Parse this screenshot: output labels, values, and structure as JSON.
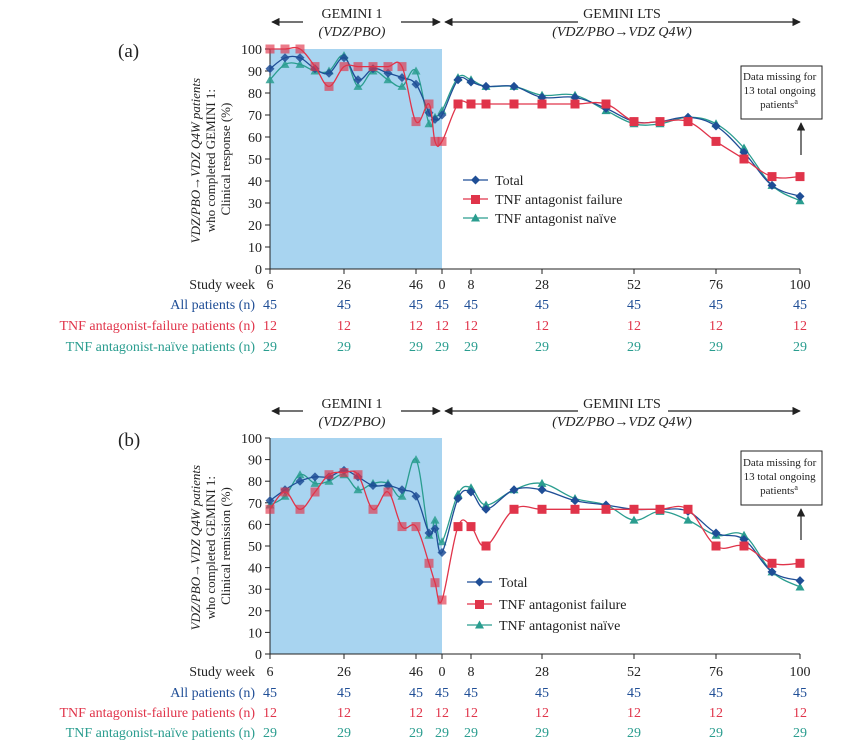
{
  "colors": {
    "total": "#1f4e96",
    "failure": "#e0344a",
    "naive": "#2a9d8f",
    "shade": "#a8d4f0",
    "axis": "#222222",
    "allPatientsText": "#1f4e96",
    "failureText": "#e0344a",
    "naiveText": "#2a9d8f"
  },
  "common": {
    "studyWeekLabel": "Study week",
    "weekTicks": [
      "6",
      "26",
      "46",
      "0",
      "8",
      "28",
      "52",
      "76",
      "100"
    ],
    "yTicks": [
      "0",
      "10",
      "20",
      "30",
      "40",
      "50",
      "60",
      "70",
      "80",
      "90",
      "100"
    ],
    "ylabelLine1": "VDZ/PBO→VDZ Q4W patients",
    "ylabelLine2": "who completed GEMINI 1:",
    "gemini1": "GEMINI 1",
    "geminiLts": "GEMINI LTS",
    "annotationLines": [
      "Data missing for",
      "13 total ongoing",
      "patients"
    ],
    "annotationSup": "a",
    "legend": [
      "Total",
      "TNF antagonist failure",
      "TNF antagonist naïve"
    ],
    "nRows": [
      {
        "label": "All patients (n)",
        "values": [
          "45",
          "45",
          "45",
          "45",
          "45",
          "45",
          "45",
          "45",
          "45"
        ]
      },
      {
        "label": "TNF antagonist-failure patients (n)",
        "values": [
          "12",
          "12",
          "12",
          "12",
          "12",
          "12",
          "12",
          "12",
          "12"
        ]
      },
      {
        "label": "TNF antagonist-naïve patients (n)",
        "values": [
          "29",
          "29",
          "29",
          "29",
          "29",
          "29",
          "29",
          "29",
          "29"
        ]
      }
    ]
  },
  "panels": [
    {
      "label": "(a)",
      "ylabelLine3": "Clinical response (%)",
      "gemini1Sub": "(VDZ/PBO)",
      "ltsSub": "(VDZ/PBO→VDZ Q4W)"
    },
    {
      "label": "(b)",
      "ylabelLine3": "Clinical remission (%)",
      "gemini1Sub": "(VDZ/PBO)",
      "ltsSub": "(VDZ/PBO→VDZ Q4W)"
    }
  ],
  "chart_data": [
    {
      "type": "line",
      "xlabel": "Study week",
      "ylabel": "VDZ/PBO→VDZ Q4W patients who completed GEMINI 1: Clinical response (%)",
      "ylim": [
        0,
        100
      ],
      "x_ticks": [
        "6",
        "26",
        "46",
        "0",
        "8",
        "28",
        "52",
        "76",
        "100"
      ],
      "periods": [
        "GEMINI 1 (VDZ/PBO)",
        "GEMINI LTS (VDZ/PBO→VDZ Q4W)"
      ],
      "legend_position": "center-right",
      "series": [
        {
          "name": "Total",
          "x": [
            "G1 wk 6",
            "G1 wk 10",
            "G1 wk 14",
            "G1 wk 18",
            "G1 wk 22",
            "G1 wk 26",
            "G1 wk 30",
            "G1 wk 34",
            "G1 wk 38",
            "G1 wk 42",
            "G1 wk 46",
            "G1 wk 50",
            "G1 wk 52",
            "LTS wk 0",
            "LTS wk 4",
            "LTS wk 8",
            "LTS wk 12",
            "LTS wk 20",
            "LTS wk 28",
            "LTS wk 36",
            "LTS wk 44",
            "LTS wk 52",
            "LTS wk 60",
            "LTS wk 68",
            "LTS wk 76",
            "LTS wk 84",
            "LTS wk 92",
            "LTS wk 100"
          ],
          "values": [
            91,
            96,
            96,
            91,
            89,
            96,
            86,
            91,
            89,
            87,
            84,
            71,
            68,
            70,
            86,
            85,
            83,
            83,
            78,
            78,
            73,
            67,
            67,
            69,
            65,
            53,
            38,
            33
          ]
        },
        {
          "name": "TNF antagonist failure",
          "x": [
            "G1 wk 6",
            "G1 wk 10",
            "G1 wk 14",
            "G1 wk 18",
            "G1 wk 22",
            "G1 wk 26",
            "G1 wk 30",
            "G1 wk 34",
            "G1 wk 38",
            "G1 wk 42",
            "G1 wk 46",
            "G1 wk 50",
            "G1 wk 52",
            "LTS wk 0",
            "LTS wk 4",
            "LTS wk 8",
            "LTS wk 12",
            "LTS wk 20",
            "LTS wk 28",
            "LTS wk 36",
            "LTS wk 44",
            "LTS wk 52",
            "LTS wk 60",
            "LTS wk 68",
            "LTS wk 76",
            "LTS wk 84",
            "LTS wk 92",
            "LTS wk 100"
          ],
          "values": [
            100,
            100,
            100,
            92,
            83,
            92,
            92,
            92,
            92,
            92,
            67,
            75,
            58,
            58,
            75,
            75,
            75,
            75,
            75,
            75,
            75,
            67,
            67,
            67,
            58,
            50,
            42,
            42
          ]
        },
        {
          "name": "TNF antagonist naïve",
          "x": [
            "G1 wk 6",
            "G1 wk 10",
            "G1 wk 14",
            "G1 wk 18",
            "G1 wk 22",
            "G1 wk 26",
            "G1 wk 30",
            "G1 wk 34",
            "G1 wk 38",
            "G1 wk 42",
            "G1 wk 46",
            "G1 wk 50",
            "G1 wk 52",
            "LTS wk 0",
            "LTS wk 4",
            "LTS wk 8",
            "LTS wk 12",
            "LTS wk 20",
            "LTS wk 28",
            "LTS wk 36",
            "LTS wk 44",
            "LTS wk 52",
            "LTS wk 60",
            "LTS wk 68",
            "LTS wk 76",
            "LTS wk 84",
            "LTS wk 92",
            "LTS wk 100"
          ],
          "values": [
            86,
            93,
            93,
            90,
            90,
            97,
            83,
            90,
            86,
            83,
            90,
            66,
            69,
            72,
            87,
            86,
            83,
            83,
            79,
            79,
            72,
            66,
            66,
            69,
            66,
            55,
            38,
            31
          ]
        }
      ]
    },
    {
      "type": "line",
      "xlabel": "Study week",
      "ylabel": "VDZ/PBO→VDZ Q4W patients who completed GEMINI 1: Clinical remission (%)",
      "ylim": [
        0,
        100
      ],
      "x_ticks": [
        "6",
        "26",
        "46",
        "0",
        "8",
        "28",
        "52",
        "76",
        "100"
      ],
      "periods": [
        "GEMINI 1 (VDZ/PBO)",
        "GEMINI LTS (VDZ/PBO→VDZ Q4W)"
      ],
      "legend_position": "bottom-center",
      "series": [
        {
          "name": "Total",
          "x": [
            "G1 wk 6",
            "G1 wk 10",
            "G1 wk 14",
            "G1 wk 18",
            "G1 wk 22",
            "G1 wk 26",
            "G1 wk 30",
            "G1 wk 34",
            "G1 wk 38",
            "G1 wk 42",
            "G1 wk 46",
            "G1 wk 50",
            "G1 wk 52",
            "LTS wk 0",
            "LTS wk 4",
            "LTS wk 8",
            "LTS wk 12",
            "LTS wk 20",
            "LTS wk 28",
            "LTS wk 36",
            "LTS wk 44",
            "LTS wk 52",
            "LTS wk 60",
            "LTS wk 68",
            "LTS wk 76",
            "LTS wk 84",
            "LTS wk 92",
            "LTS wk 100"
          ],
          "values": [
            71,
            76,
            80,
            82,
            82,
            85,
            82,
            78,
            78,
            76,
            73,
            56,
            58,
            47,
            72,
            75,
            67,
            76,
            76,
            71,
            69,
            67,
            67,
            66,
            56,
            53,
            38,
            34
          ]
        },
        {
          "name": "TNF antagonist failure",
          "x": [
            "G1 wk 6",
            "G1 wk 10",
            "G1 wk 14",
            "G1 wk 18",
            "G1 wk 22",
            "G1 wk 26",
            "G1 wk 30",
            "G1 wk 34",
            "G1 wk 38",
            "G1 wk 42",
            "G1 wk 46",
            "G1 wk 50",
            "G1 wk 52",
            "LTS wk 0",
            "LTS wk 4",
            "LTS wk 8",
            "LTS wk 12",
            "LTS wk 20",
            "LTS wk 28",
            "LTS wk 36",
            "LTS wk 44",
            "LTS wk 52",
            "LTS wk 60",
            "LTS wk 68",
            "LTS wk 76",
            "LTS wk 84",
            "LTS wk 92",
            "LTS wk 100"
          ],
          "values": [
            67,
            75,
            67,
            75,
            83,
            84,
            83,
            67,
            75,
            59,
            59,
            42,
            33,
            25,
            59,
            59,
            50,
            67,
            67,
            67,
            67,
            67,
            67,
            67,
            50,
            50,
            42,
            42
          ]
        },
        {
          "name": "TNF antagonist naïve",
          "x": [
            "G1 wk 6",
            "G1 wk 10",
            "G1 wk 14",
            "G1 wk 18",
            "G1 wk 22",
            "G1 wk 26",
            "G1 wk 30",
            "G1 wk 34",
            "G1 wk 38",
            "G1 wk 42",
            "G1 wk 46",
            "G1 wk 50",
            "G1 wk 52",
            "LTS wk 0",
            "LTS wk 4",
            "LTS wk 8",
            "LTS wk 12",
            "LTS wk 20",
            "LTS wk 28",
            "LTS wk 36",
            "LTS wk 44",
            "LTS wk 52",
            "LTS wk 60",
            "LTS wk 68",
            "LTS wk 76",
            "LTS wk 84",
            "LTS wk 92",
            "LTS wk 100"
          ],
          "values": [
            69,
            73,
            83,
            79,
            80,
            83,
            76,
            79,
            79,
            73,
            90,
            55,
            62,
            52,
            74,
            77,
            69,
            76,
            79,
            72,
            69,
            62,
            66,
            62,
            55,
            55,
            38,
            31
          ]
        }
      ]
    }
  ]
}
